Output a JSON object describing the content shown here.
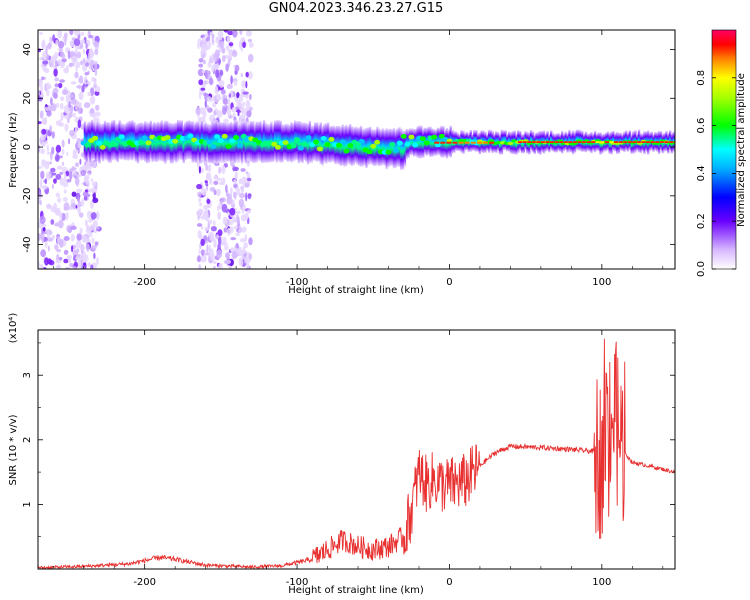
{
  "title": "GN04.2023.346.23.27.G15",
  "chart_data": [
    {
      "type": "heatmap",
      "xlabel": "Height of straight line (km)",
      "ylabel": "Frequency (Hz)",
      "xlim": [
        -270,
        148
      ],
      "ylim": [
        -50,
        48
      ],
      "xticks": [
        -200,
        -100,
        0,
        100
      ],
      "yticks": [
        -40,
        -20,
        0,
        20,
        40
      ],
      "colorbar": {
        "label": "Normalized spectral amplitude",
        "range": [
          0,
          1
        ],
        "ticks": [
          0.0,
          0.2,
          0.4,
          0.6,
          0.8
        ],
        "colors": [
          "#ffffff",
          "#6a00ff",
          "#0000ff",
          "#00ffff",
          "#00ff00",
          "#ffff00",
          "#ff0000",
          "#ff0066"
        ]
      },
      "features": [
        {
          "desc": "central frequency band",
          "x_range": [
            -240,
            148
          ],
          "center_hz": 2
        },
        {
          "desc": "broadband noise column",
          "x_range": [
            -270,
            -230
          ]
        },
        {
          "desc": "broadband noise column",
          "x_range": [
            -165,
            -130
          ]
        }
      ]
    },
    {
      "type": "line",
      "xlabel": "Height of straight line (km)",
      "ylabel": "SNR (10 * v/v)",
      "y_exponent_label": "(x10⁴)",
      "xlim": [
        -270,
        148
      ],
      "ylim": [
        0,
        3.7
      ],
      "xticks": [
        -200,
        -100,
        0,
        100
      ],
      "yticks": [
        1,
        2,
        3
      ],
      "color": "#e83030",
      "x": [
        -270,
        -240,
        -210,
        -190,
        -180,
        -160,
        -130,
        -110,
        -90,
        -80,
        -70,
        -60,
        -50,
        -40,
        -30,
        -25,
        -20,
        -15,
        -10,
        -5,
        0,
        10,
        20,
        30,
        40,
        60,
        80,
        95,
        100,
        105,
        110,
        115,
        120,
        130,
        148
      ],
      "y": [
        0.02,
        0.04,
        0.08,
        0.18,
        0.15,
        0.06,
        0.03,
        0.05,
        0.15,
        0.3,
        0.45,
        0.35,
        0.3,
        0.35,
        0.5,
        0.9,
        1.5,
        1.3,
        1.4,
        1.3,
        1.3,
        1.35,
        1.6,
        1.8,
        1.9,
        1.88,
        1.85,
        1.82,
        1.7,
        2.5,
        2.2,
        1.8,
        1.65,
        1.6,
        1.5
      ]
    }
  ]
}
